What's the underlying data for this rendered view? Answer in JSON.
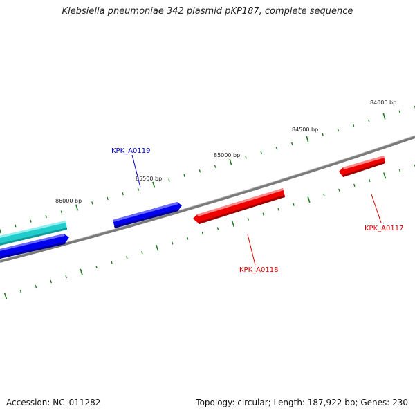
{
  "title": "Klebsiella pneumoniae 342 plasmid pKP187, complete sequence",
  "footer": {
    "accession": "Accession: NC_011282",
    "summary": "Topology: circular; Length: 187,922 bp; Genes: 230"
  },
  "colors": {
    "backbone": "#7a7a7a",
    "ticks": "#1f7a1f",
    "forward_gene": "#0000ee",
    "reverse_gene": "#ee0000",
    "other_gene": "#22cccc"
  },
  "scale_labels": [
    "84000 bp",
    "84500 bp",
    "85000 bp",
    "85500 bp",
    "86000 bp"
  ],
  "genes": [
    {
      "id": "KPK_A0117",
      "label": "KPK_A0117",
      "strand": "reverse",
      "color": "#ee0000"
    },
    {
      "id": "KPK_A0118",
      "label": "KPK_A0118",
      "strand": "reverse",
      "color": "#ee0000"
    },
    {
      "id": "KPK_A0119",
      "label": "KPK_A0119",
      "strand": "forward",
      "color": "#0000ee"
    },
    {
      "id": "unlabeled-forward",
      "label": "",
      "strand": "forward",
      "color": "#0000ee"
    },
    {
      "id": "unlabeled-cyan",
      "label": "",
      "strand": "forward",
      "color": "#22cccc"
    }
  ]
}
